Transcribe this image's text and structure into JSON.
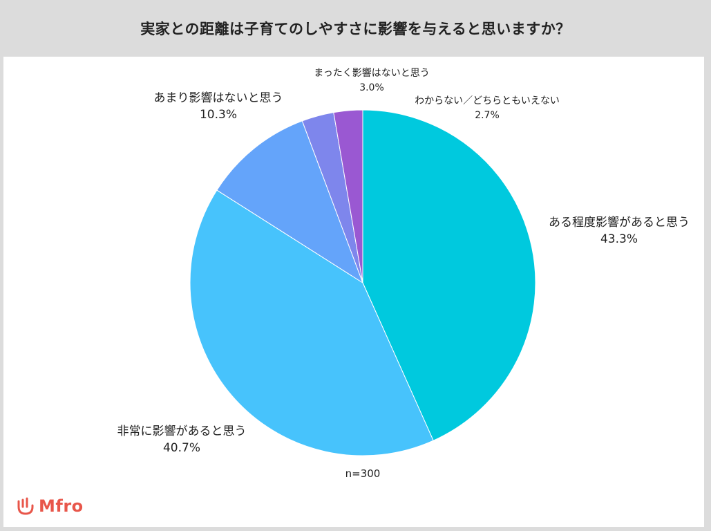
{
  "header": {
    "title": "実家との距離は子育てのしやすさに影響を与えると思いますか？"
  },
  "chart_data": {
    "type": "pie",
    "title": "実家との距離は子育てのしやすさに影響を与えると思いますか？",
    "sample": "n=300",
    "slices": [
      {
        "label": "ある程度影響があると思う",
        "value": 43.3,
        "value_label": "43.3%",
        "color": "#00c9de"
      },
      {
        "label": "非常に影響があると思う",
        "value": 40.7,
        "value_label": "40.7%",
        "color": "#47c3fc"
      },
      {
        "label": "あまり影響はないと思う",
        "value": 10.3,
        "value_label": "10.3%",
        "color": "#64a4fa"
      },
      {
        "label": "まったく影響はないと思う",
        "value": 3.0,
        "value_label": "3.0%",
        "color": "#7e86ec"
      },
      {
        "label": "わからない／どちらともいえない",
        "value": 2.7,
        "value_label": "2.7%",
        "color": "#9a58d2"
      }
    ]
  },
  "logo": {
    "text": "Mfro",
    "color": "#e8564a"
  }
}
